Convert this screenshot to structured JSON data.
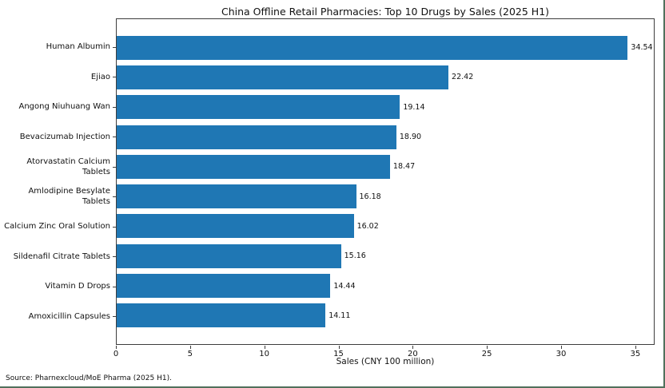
{
  "chart_data": {
    "type": "bar",
    "orientation": "horizontal",
    "title": "China Offline Retail Pharmacies: Top 10 Drugs by Sales (2025 H1)",
    "categories": [
      "Human Albumin",
      "Ejiao",
      "Angong Niuhuang Wan",
      "Bevacizumab Injection",
      "Atorvastatin Calcium Tablets",
      "Amlodipine Besylate Tablets",
      "Calcium Zinc Oral Solution",
      "Sildenafil Citrate Tablets",
      "Vitamin D Drops",
      "Amoxicillin Capsules"
    ],
    "values": [
      34.54,
      22.42,
      19.14,
      18.9,
      18.47,
      16.18,
      16.02,
      15.16,
      14.44,
      14.11
    ],
    "value_labels": [
      "34.54",
      "22.42",
      "19.14",
      "18.90",
      "18.47",
      "16.18",
      "16.02",
      "15.16",
      "14.44",
      "14.11"
    ],
    "xlabel": "Sales (CNY 100 million)",
    "ylabel": "",
    "xlim": [
      0,
      36.3
    ],
    "xticks": [
      0,
      5,
      10,
      15,
      20,
      25,
      30,
      35
    ],
    "grid": false,
    "legend_position": "none",
    "bar_color": "#1f77b4",
    "source": "Source: Pharnexcloud/MoE Pharma (2025 H1)."
  }
}
